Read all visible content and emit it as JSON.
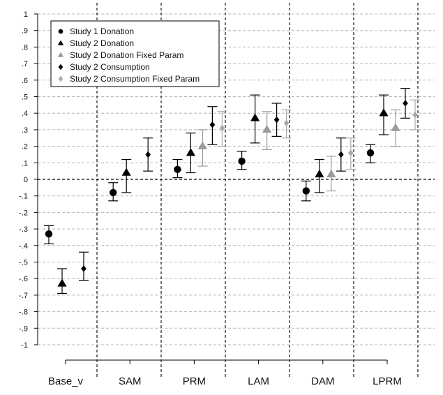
{
  "chart_data": {
    "type": "scatter",
    "subtype": "dot-and-whisker",
    "title": "",
    "xlabel": "",
    "ylabel": "",
    "ylim": [
      -1,
      1
    ],
    "y_ticks": [
      -1,
      -0.9,
      -0.8,
      -0.7,
      -0.6,
      -0.5,
      -0.4,
      -0.3,
      -0.2,
      -0.1,
      0,
      0.1,
      0.2,
      0.3,
      0.4,
      0.5,
      0.6,
      0.7,
      0.8,
      0.9,
      1
    ],
    "y_tick_labels": [
      "-1",
      "-.9",
      "-.8",
      "-.7",
      "-.6",
      "-.5",
      "-.4",
      "-.3",
      "-.2",
      "-.1",
      "0",
      ".1",
      ".2",
      ".3",
      ".4",
      ".5",
      ".6",
      ".7",
      ".8",
      ".9",
      "1"
    ],
    "categories": [
      "Base_v",
      "SAM",
      "PRM",
      "LAM",
      "DAM",
      "LPRM"
    ],
    "grid": true,
    "legend_position": "top-left",
    "series": [
      {
        "name": "Study 1 Donation",
        "marker": "circle",
        "color": "#000000",
        "points": [
          {
            "category": "Base_v",
            "value": -0.33,
            "low": -0.39,
            "high": -0.28
          },
          {
            "category": "SAM",
            "value": -0.08,
            "low": -0.13,
            "high": -0.02
          },
          {
            "category": "PRM",
            "value": 0.06,
            "low": 0.01,
            "high": 0.12
          },
          {
            "category": "LAM",
            "value": 0.11,
            "low": 0.06,
            "high": 0.17
          },
          {
            "category": "DAM",
            "value": -0.07,
            "low": -0.13,
            "high": -0.01
          },
          {
            "category": "LPRM",
            "value": 0.16,
            "low": 0.1,
            "high": 0.21
          }
        ]
      },
      {
        "name": "Study 2 Donation",
        "marker": "triangle",
        "color": "#000000",
        "points": [
          {
            "category": "Base_v",
            "value": -0.63,
            "low": -0.69,
            "high": -0.54
          },
          {
            "category": "SAM",
            "value": 0.04,
            "low": -0.08,
            "high": 0.12
          },
          {
            "category": "PRM",
            "value": 0.16,
            "low": 0.04,
            "high": 0.28
          },
          {
            "category": "LAM",
            "value": 0.37,
            "low": 0.22,
            "high": 0.51
          },
          {
            "category": "DAM",
            "value": 0.03,
            "low": -0.08,
            "high": 0.12
          },
          {
            "category": "LPRM",
            "value": 0.4,
            "low": 0.27,
            "high": 0.51
          }
        ]
      },
      {
        "name": "Study 2 Donation Fixed Param",
        "marker": "triangle",
        "color": "#999999",
        "points": [
          {
            "category": "PRM",
            "value": 0.2,
            "low": 0.08,
            "high": 0.3
          },
          {
            "category": "LAM",
            "value": 0.3,
            "low": 0.18,
            "high": 0.41
          },
          {
            "category": "DAM",
            "value": 0.03,
            "low": -0.07,
            "high": 0.14
          },
          {
            "category": "LPRM",
            "value": 0.31,
            "low": 0.2,
            "high": 0.42
          }
        ]
      },
      {
        "name": "Study 2 Consumption",
        "marker": "diamond",
        "color": "#000000",
        "points": [
          {
            "category": "Base_v",
            "value": -0.54,
            "low": -0.61,
            "high": -0.44
          },
          {
            "category": "SAM",
            "value": 0.15,
            "low": 0.05,
            "high": 0.25
          },
          {
            "category": "PRM",
            "value": 0.33,
            "low": 0.21,
            "high": 0.44
          },
          {
            "category": "LAM",
            "value": 0.36,
            "low": 0.26,
            "high": 0.46
          },
          {
            "category": "DAM",
            "value": 0.15,
            "low": 0.05,
            "high": 0.25
          },
          {
            "category": "LPRM",
            "value": 0.46,
            "low": 0.37,
            "high": 0.55
          }
        ]
      },
      {
        "name": "Study 2 Consumption Fixed Param",
        "marker": "diamond",
        "color": "#aaaaaa",
        "points": [
          {
            "category": "PRM",
            "value": 0.31,
            "low": 0.2,
            "high": 0.41
          },
          {
            "category": "LAM",
            "value": 0.34,
            "low": 0.25,
            "high": 0.42
          },
          {
            "category": "DAM",
            "value": 0.16,
            "low": 0.06,
            "high": 0.25
          },
          {
            "category": "LPRM",
            "value": 0.39,
            "low": 0.3,
            "high": 0.48
          }
        ]
      }
    ]
  }
}
